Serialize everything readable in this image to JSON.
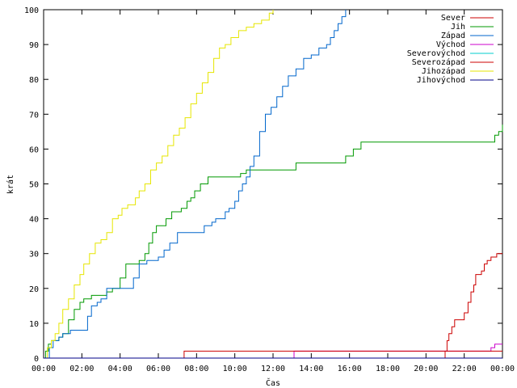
{
  "chart_data": {
    "type": "line",
    "xlabel": "Čas",
    "ylabel": "krát",
    "xlim": [
      0,
      24
    ],
    "ylim": [
      0,
      100
    ],
    "x_ticks": [
      0,
      2,
      4,
      6,
      8,
      10,
      12,
      14,
      16,
      18,
      20,
      22,
      24
    ],
    "x_tick_labels": [
      "00:00",
      "02:00",
      "04:00",
      "06:00",
      "08:00",
      "10:00",
      "12:00",
      "14:00",
      "16:00",
      "18:00",
      "20:00",
      "22:00",
      "00:00"
    ],
    "y_ticks": [
      0,
      10,
      20,
      30,
      40,
      50,
      60,
      70,
      80,
      90,
      100
    ],
    "y_tick_labels": [
      "0",
      "10",
      "20",
      "30",
      "40",
      "50",
      "60",
      "70",
      "80",
      "90",
      "100"
    ],
    "legend_position": "top-right",
    "grid": false,
    "series": [
      {
        "name": "Sever",
        "color": "#cc0000",
        "x": [
          0,
          20.9,
          21.0,
          21.1,
          21.2,
          21.35,
          21.5,
          21.6,
          21.8,
          22.0,
          22.2,
          22.35,
          22.5,
          22.6,
          22.75,
          22.9,
          23.05,
          23.2,
          23.4,
          23.55,
          23.7,
          24.0
        ],
        "y": [
          0,
          0,
          2,
          5,
          7,
          9,
          11,
          11,
          11,
          13,
          16,
          19,
          21,
          24,
          24,
          25,
          27,
          28,
          29,
          29,
          30,
          30
        ]
      },
      {
        "name": "Jih",
        "color": "#009900",
        "x": [
          0,
          0.1,
          0.25,
          0.4,
          0.6,
          0.8,
          1.0,
          1.3,
          1.6,
          1.9,
          2.1,
          2.5,
          3.1,
          3.3,
          3.6,
          3.8,
          4.0,
          4.3,
          4.5,
          4.7,
          5.0,
          5.3,
          5.5,
          5.7,
          5.9,
          6.2,
          6.4,
          6.7,
          7.0,
          7.2,
          7.5,
          7.7,
          7.9,
          8.2,
          8.6,
          9.0,
          9.5,
          10.0,
          10.3,
          10.6,
          11.0,
          12.0,
          12.8,
          13.2,
          14.0,
          15.0,
          15.8,
          16.0,
          16.2,
          16.4,
          16.6,
          17.0,
          18.0,
          20.0,
          22.0,
          23.4,
          23.6,
          23.8,
          24.0
        ],
        "y": [
          0,
          2,
          4,
          5,
          5,
          6,
          7,
          11,
          14,
          16,
          17,
          18,
          18,
          19,
          20,
          20,
          23,
          27,
          27,
          27,
          28,
          30,
          33,
          36,
          38,
          38,
          40,
          42,
          42,
          43,
          45,
          46,
          48,
          50,
          52,
          52,
          52,
          52,
          53,
          54,
          54,
          54,
          54,
          56,
          56,
          56,
          58,
          58,
          60,
          60,
          62,
          62,
          62,
          62,
          62,
          62,
          64,
          65,
          67
        ]
      },
      {
        "name": "Západ",
        "color": "#0066cc",
        "x": [
          0,
          0.3,
          0.5,
          0.8,
          1.0,
          1.4,
          2.0,
          2.3,
          2.5,
          2.8,
          3.0,
          3.3,
          3.5,
          3.9,
          4.3,
          4.7,
          5.0,
          5.4,
          5.8,
          6.0,
          6.3,
          6.6,
          7.0,
          7.5,
          8.0,
          8.4,
          8.8,
          9.0,
          9.3,
          9.5,
          9.7,
          10.0,
          10.2,
          10.4,
          10.6,
          10.8,
          11.0,
          11.3,
          11.6,
          11.9,
          12.2,
          12.5,
          12.8,
          13.2,
          13.6,
          14.0,
          14.4,
          14.8,
          15.0,
          15.2,
          15.4,
          15.6,
          15.8
        ],
        "y": [
          0,
          3,
          5,
          6,
          7,
          8,
          8,
          12,
          15,
          16,
          17,
          20,
          20,
          20,
          20,
          23,
          27,
          28,
          28,
          29,
          31,
          33,
          36,
          36,
          36,
          38,
          39,
          40,
          40,
          42,
          43,
          45,
          48,
          50,
          52,
          55,
          58,
          65,
          70,
          72,
          75,
          78,
          81,
          83,
          86,
          87,
          89,
          90,
          92,
          94,
          96,
          98,
          100
        ]
      },
      {
        "name": "Východ",
        "color": "#cc00cc",
        "x": [
          0,
          13.05,
          13.1,
          23.3,
          23.4,
          23.6,
          24.0
        ],
        "y": [
          0,
          0,
          2,
          2,
          3,
          4,
          4
        ]
      },
      {
        "name": "Severovýchod",
        "color": "#00cccc",
        "x": [
          0,
          24
        ],
        "y": [
          0,
          0
        ]
      },
      {
        "name": "Severozápad",
        "color": "#cc0000",
        "x": [
          0,
          7.3,
          7.35,
          24.0
        ],
        "y": [
          0,
          0,
          2,
          2
        ]
      },
      {
        "name": "Jihozápad",
        "color": "#e6e600",
        "x": [
          0,
          0.2,
          0.4,
          0.6,
          0.8,
          1.0,
          1.3,
          1.6,
          1.9,
          2.1,
          2.4,
          2.7,
          3.0,
          3.3,
          3.6,
          3.9,
          4.1,
          4.4,
          4.8,
          5.0,
          5.3,
          5.6,
          5.9,
          6.2,
          6.5,
          6.8,
          7.1,
          7.4,
          7.7,
          8.0,
          8.3,
          8.6,
          8.9,
          9.2,
          9.5,
          9.8,
          10.2,
          10.6,
          11.0,
          11.4,
          11.8,
          12.0
        ],
        "y": [
          0,
          3,
          5,
          7,
          10,
          14,
          17,
          21,
          24,
          27,
          30,
          33,
          34,
          36,
          40,
          41,
          43,
          44,
          46,
          48,
          50,
          54,
          56,
          58,
          61,
          64,
          66,
          69,
          73,
          76,
          79,
          82,
          86,
          89,
          90,
          92,
          94,
          95,
          96,
          97,
          99,
          100
        ]
      },
      {
        "name": "Jihovýchod",
        "color": "#000088",
        "x": [
          0,
          24
        ],
        "y": [
          0,
          0
        ]
      }
    ]
  }
}
